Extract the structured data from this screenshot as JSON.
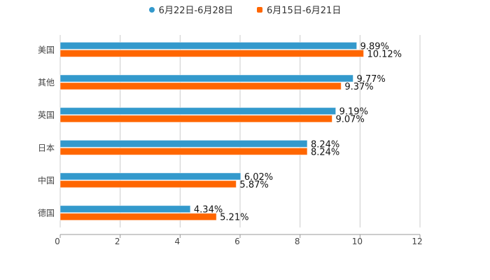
{
  "chart_data": {
    "type": "bar",
    "orientation": "horizontal",
    "categories": [
      "美国",
      "其他",
      "英国",
      "日本",
      "中国",
      "德国"
    ],
    "series": [
      {
        "name": "6月22日-6月28日",
        "color": "#3399cc",
        "values": [
          9.89,
          9.77,
          9.19,
          8.24,
          6.02,
          4.34
        ],
        "labels": [
          "9.89%",
          "9.77%",
          "9.19%",
          "8.24%",
          "6.02%",
          "4.34%"
        ]
      },
      {
        "name": "6月15日-6月21日",
        "color": "#ff6600",
        "values": [
          10.12,
          9.37,
          9.07,
          8.24,
          5.87,
          5.21
        ],
        "labels": [
          "10.12%",
          "9.37%",
          "9.07%",
          "8.24%",
          "5.87%",
          "5.21%"
        ]
      }
    ],
    "xlim": [
      0,
      12
    ],
    "xticks": [
      "0",
      "2",
      "4",
      "6",
      "8",
      "10",
      "12"
    ],
    "grid": true,
    "legend": "top-center"
  }
}
